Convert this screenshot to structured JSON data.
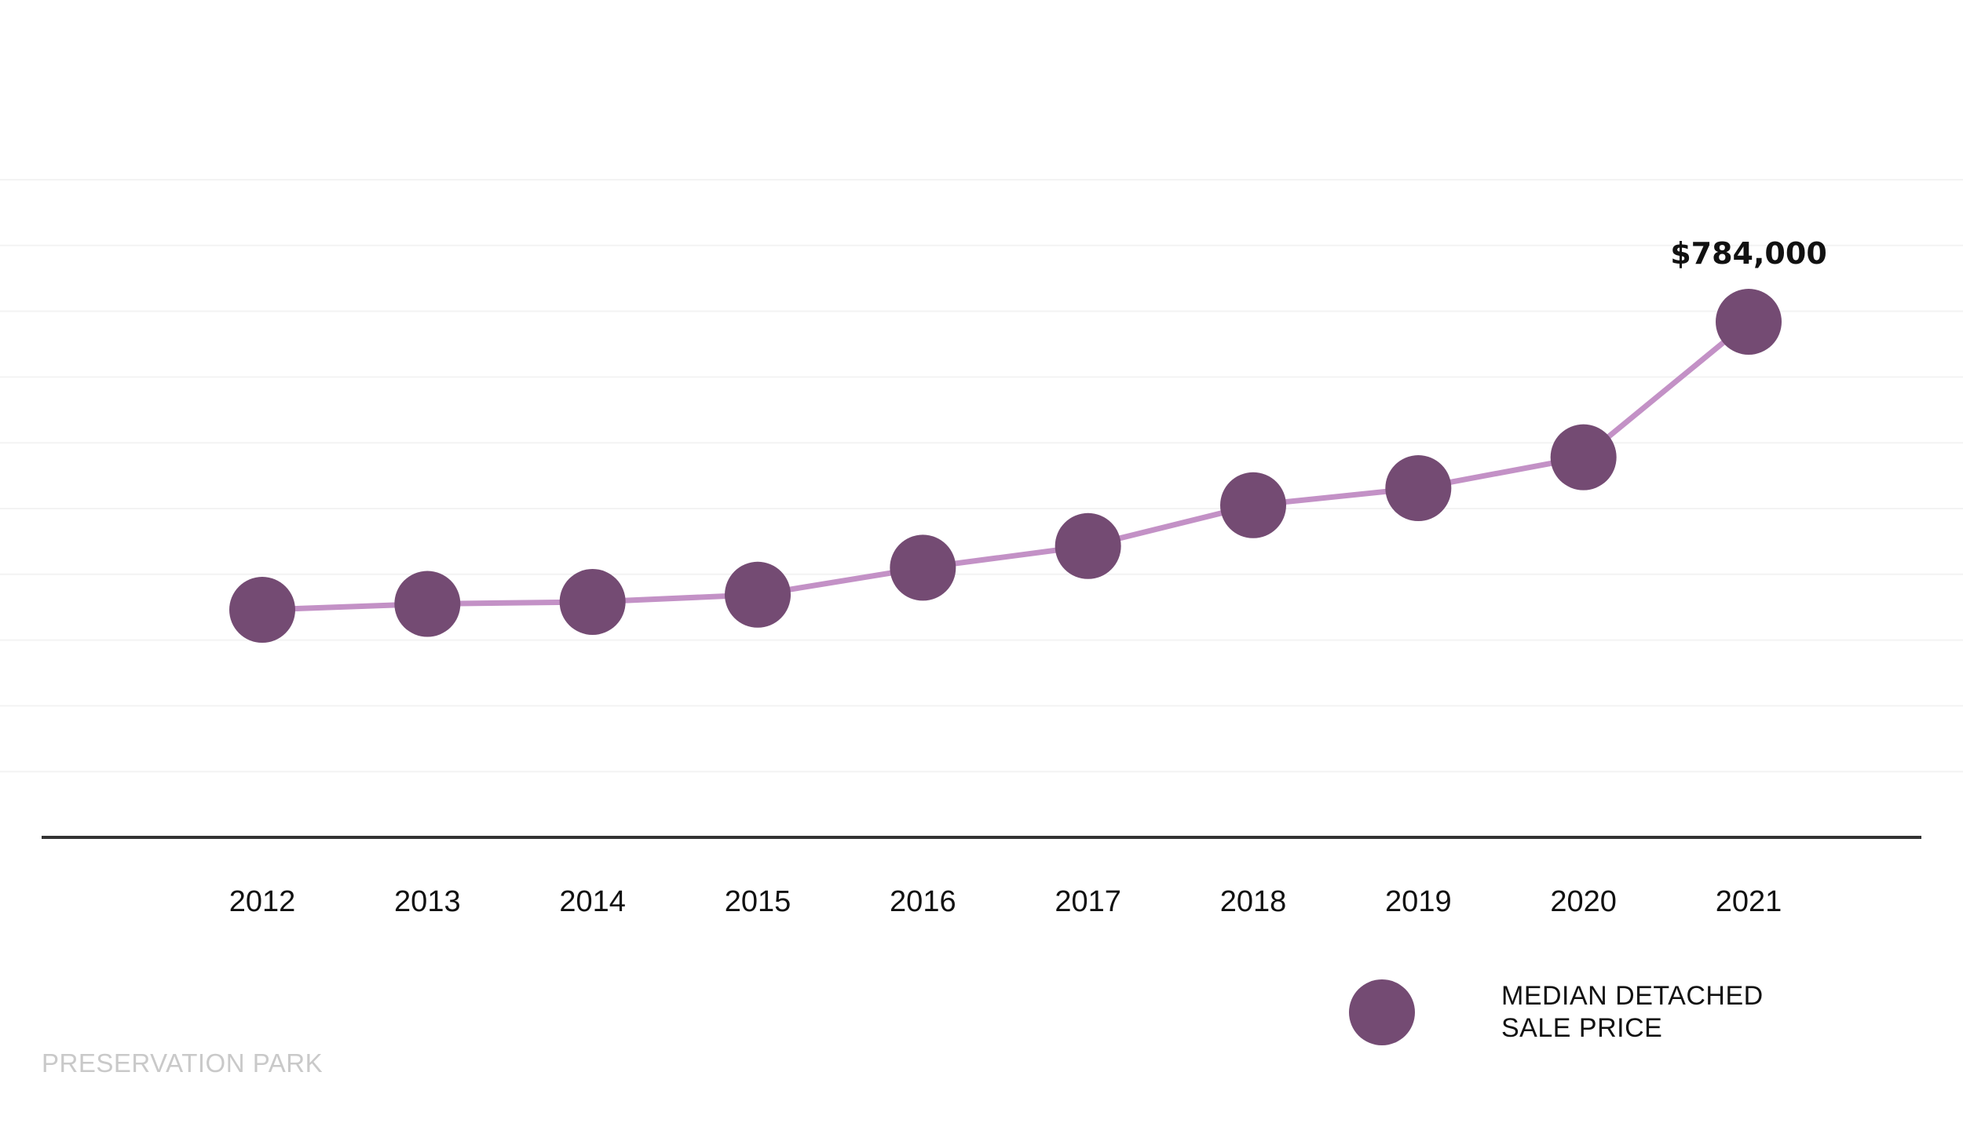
{
  "chart_data": {
    "type": "line",
    "categories": [
      "2012",
      "2013",
      "2014",
      "2015",
      "2016",
      "2017",
      "2018",
      "2019",
      "2020",
      "2021"
    ],
    "series": [
      {
        "name": "MEDIAN DETACHED SALE PRICE",
        "values": [
          346000,
          355000,
          358000,
          369000,
          410000,
          443000,
          505000,
          531000,
          578000,
          784000
        ]
      }
    ],
    "data_labels": [
      {
        "category": "2021",
        "text": "$784,000"
      }
    ],
    "ylim": [
      0,
      1000000
    ],
    "grid": true,
    "legend_position": "bottom-right",
    "colors": {
      "marker": "#744b73",
      "line": "#c391c6",
      "axis": "#333333",
      "gridline": "#f3f3f3",
      "watermark": "#c9c9c9"
    }
  },
  "legend": {
    "line1": "MEDIAN DETACHED",
    "line2": "SALE PRICE"
  },
  "watermark": "PRESERVATION PARK"
}
